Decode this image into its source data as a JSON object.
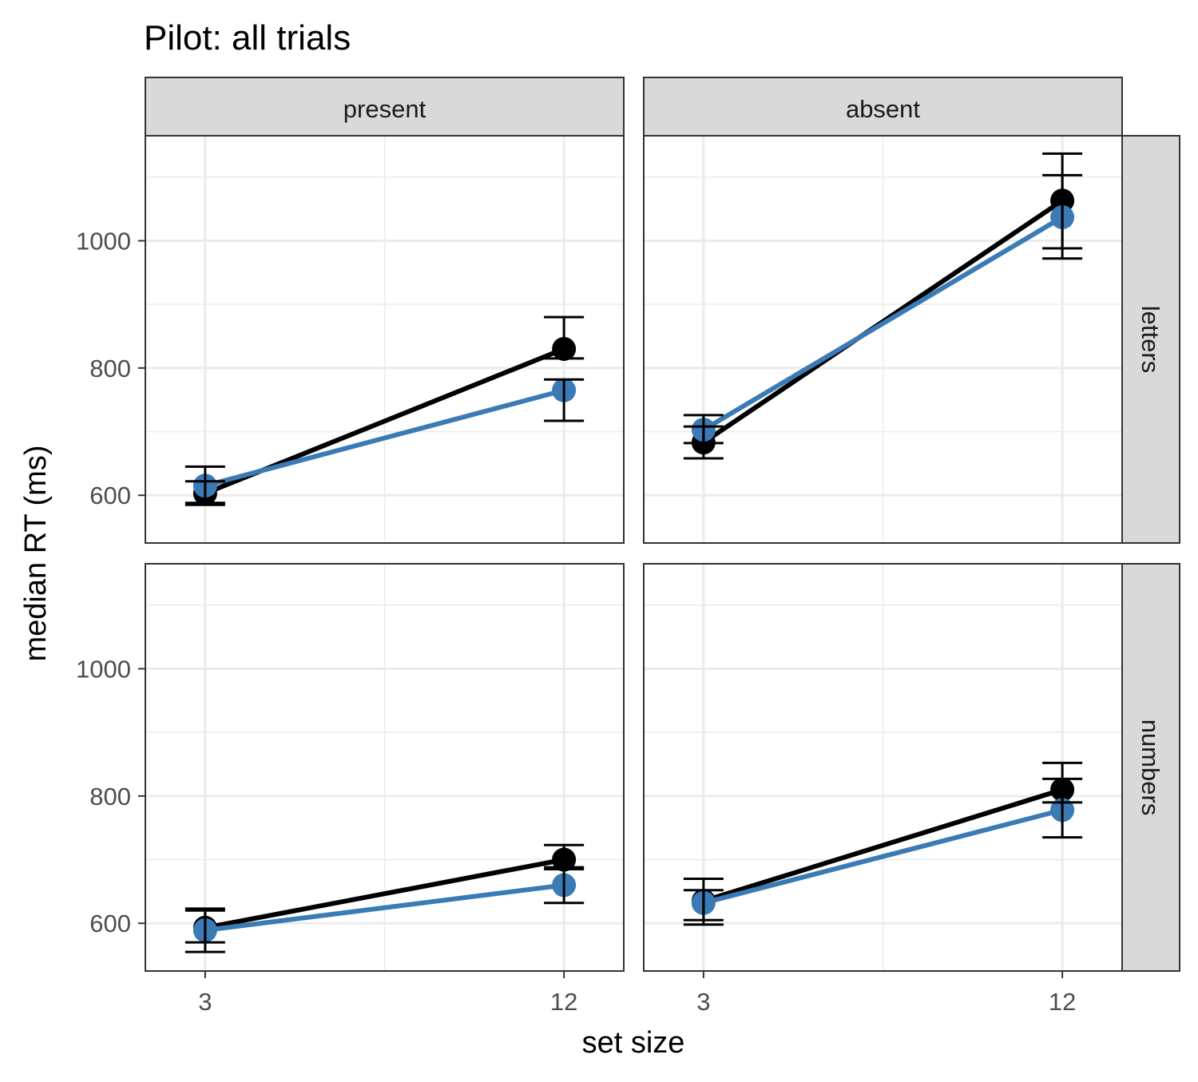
{
  "chart_data": {
    "type": "line",
    "title": "Pilot: all trials",
    "xlabel": "set size",
    "ylabel": "median RT (ms)",
    "x_ticks": [
      3,
      12
    ],
    "y_ticks": [
      600,
      800,
      1000
    ],
    "xlim": [
      1.5,
      13.5
    ],
    "ylim": [
      525,
      1165
    ],
    "grid": true,
    "legend": "none",
    "colors": {
      "series_a": "#000000",
      "series_b": "#3a7ab5",
      "strip_fill": "#d9d9d9",
      "grid": "#ebebeb",
      "panel_border": "#333333"
    },
    "column_strips": [
      "present",
      "absent"
    ],
    "row_strips": [
      "letters",
      "numbers"
    ],
    "panels": [
      {
        "column": "present",
        "row": "letters",
        "series": [
          {
            "color": "#000000",
            "points": [
              {
                "x": 3,
                "y": 603,
                "lo": 585,
                "hi": 622
              },
              {
                "x": 12,
                "y": 830,
                "lo": 815,
                "hi": 880
              }
            ]
          },
          {
            "color": "#3a7ab5",
            "points": [
              {
                "x": 3,
                "y": 615,
                "lo": 588,
                "hi": 645
              },
              {
                "x": 12,
                "y": 765,
                "lo": 717,
                "hi": 782
              }
            ]
          }
        ]
      },
      {
        "column": "absent",
        "row": "letters",
        "series": [
          {
            "color": "#000000",
            "points": [
              {
                "x": 3,
                "y": 683,
                "lo": 658,
                "hi": 708
              },
              {
                "x": 12,
                "y": 1063,
                "lo": 988,
                "hi": 1137
              }
            ]
          },
          {
            "color": "#3a7ab5",
            "points": [
              {
                "x": 3,
                "y": 703,
                "lo": 682,
                "hi": 726
              },
              {
                "x": 12,
                "y": 1037,
                "lo": 972,
                "hi": 1103
              }
            ]
          }
        ]
      },
      {
        "column": "present",
        "row": "numbers",
        "series": [
          {
            "color": "#000000",
            "points": [
              {
                "x": 3,
                "y": 593,
                "lo": 570,
                "hi": 620
              },
              {
                "x": 12,
                "y": 700,
                "lo": 685,
                "hi": 723
              }
            ]
          },
          {
            "color": "#3a7ab5",
            "points": [
              {
                "x": 3,
                "y": 589,
                "lo": 555,
                "hi": 623
              },
              {
                "x": 12,
                "y": 660,
                "lo": 632,
                "hi": 688
              }
            ]
          }
        ]
      },
      {
        "column": "absent",
        "row": "numbers",
        "series": [
          {
            "color": "#000000",
            "points": [
              {
                "x": 3,
                "y": 635,
                "lo": 605,
                "hi": 670
              },
              {
                "x": 12,
                "y": 810,
                "lo": 790,
                "hi": 852
              }
            ]
          },
          {
            "color": "#3a7ab5",
            "points": [
              {
                "x": 3,
                "y": 632,
                "lo": 598,
                "hi": 652
              },
              {
                "x": 12,
                "y": 778,
                "lo": 735,
                "hi": 827
              }
            ]
          }
        ]
      }
    ]
  }
}
